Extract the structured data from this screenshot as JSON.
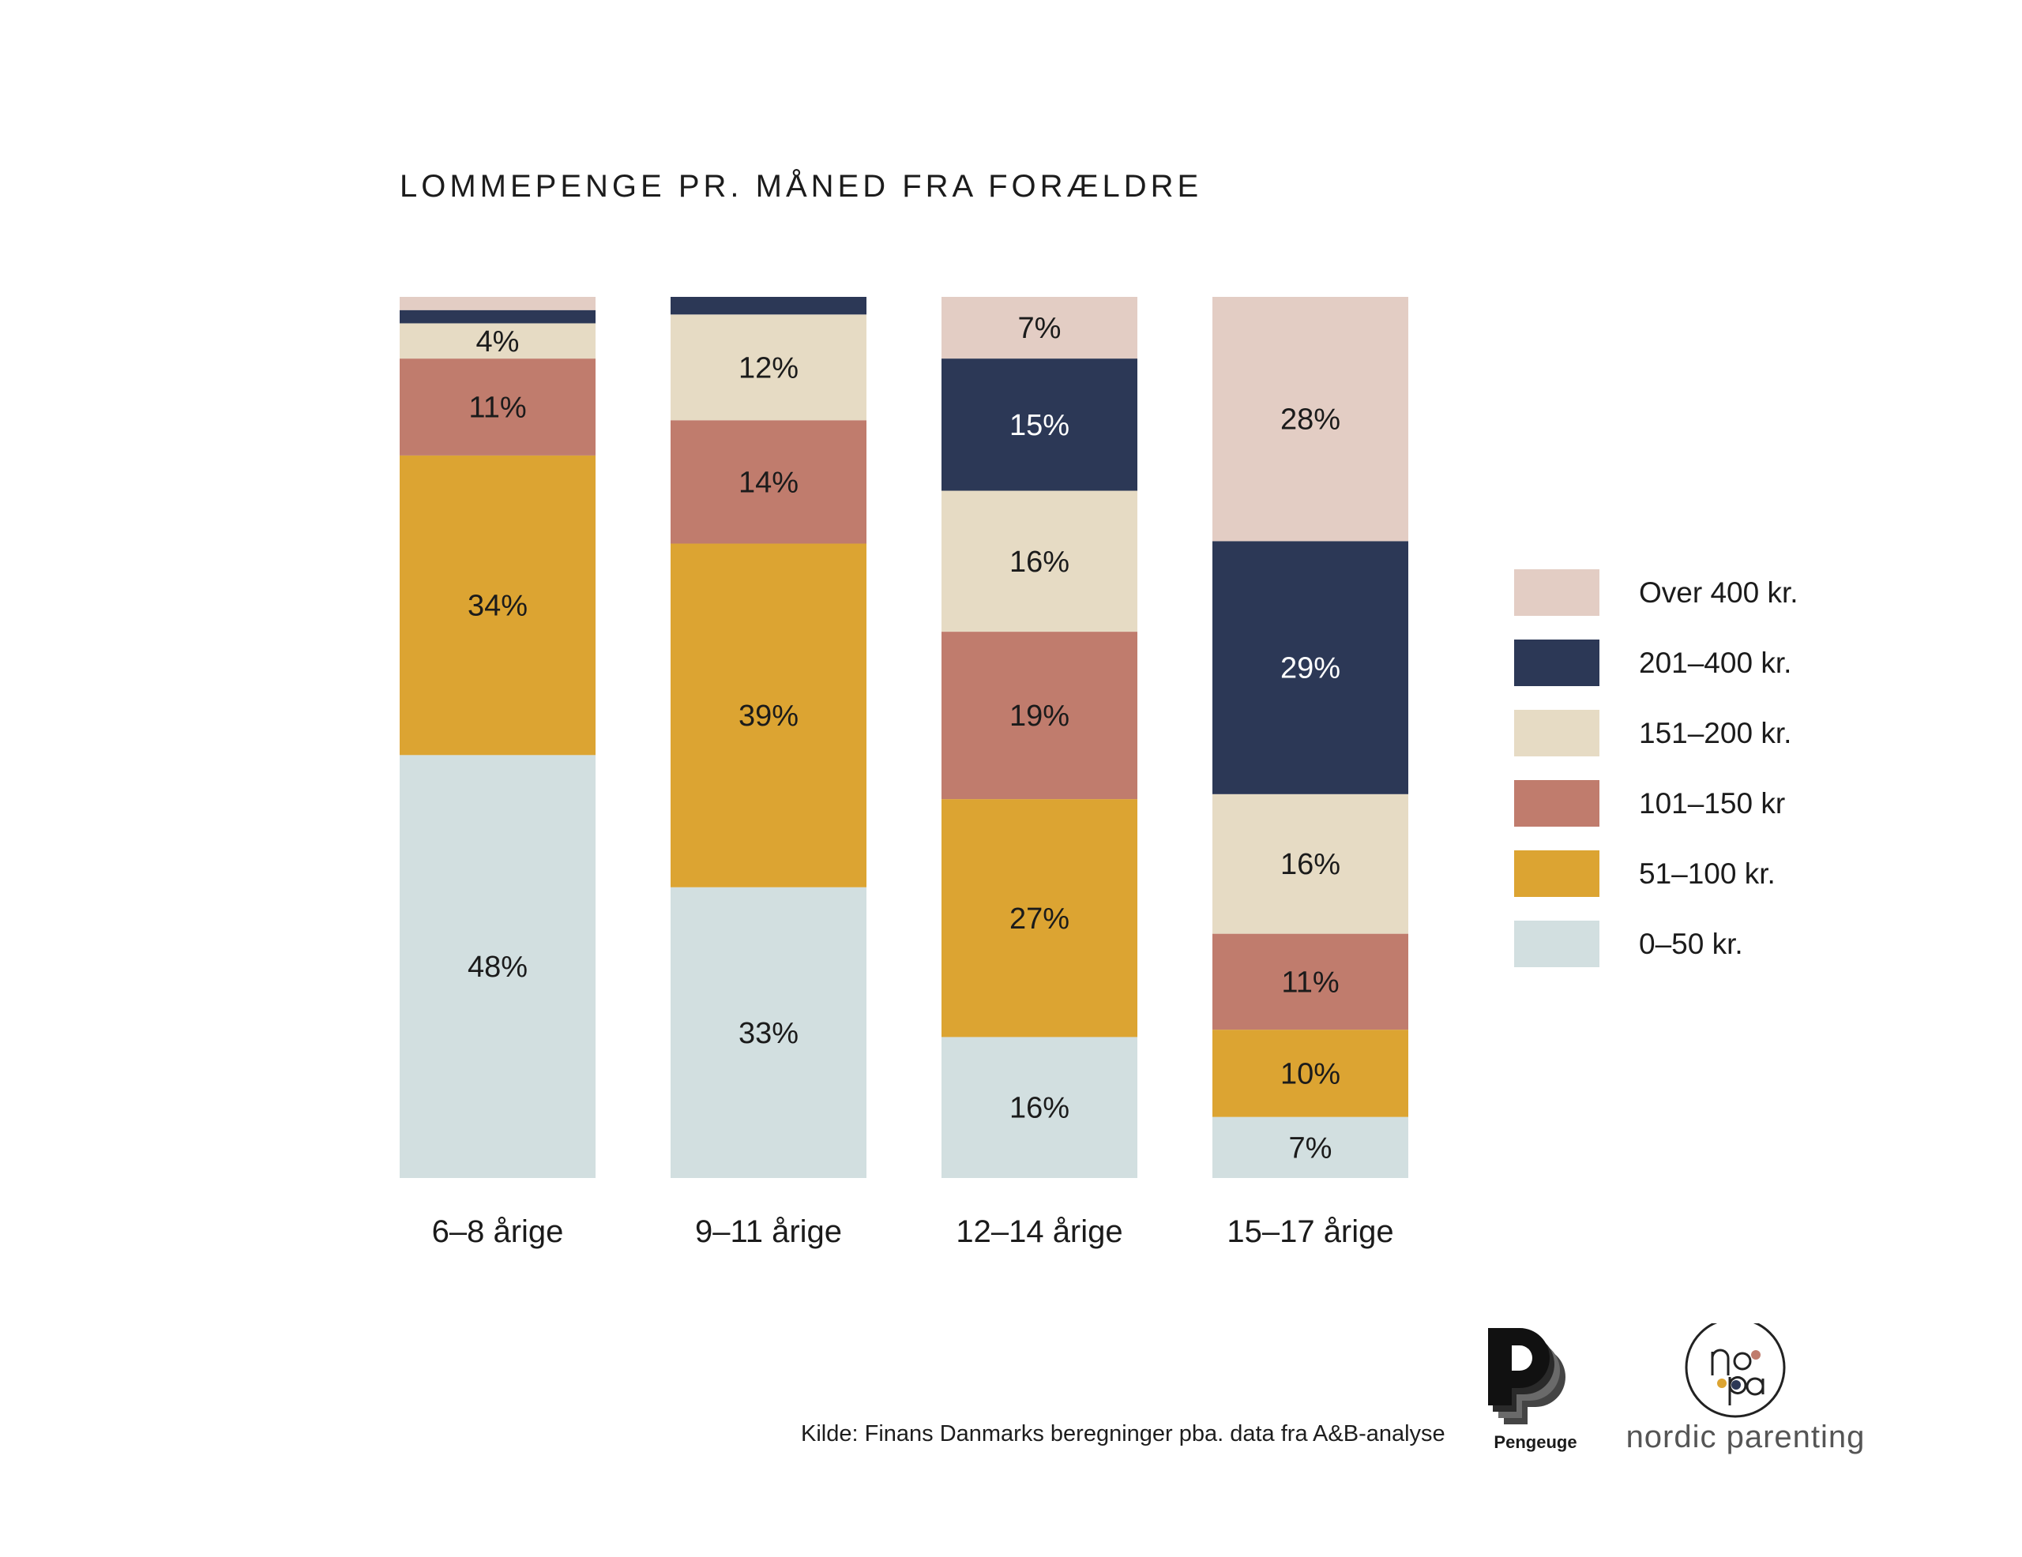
{
  "chart_data": {
    "type": "bar",
    "stacked": true,
    "title": "LOMMEPENGE PR. MÅNED FRA FORÆLDRE",
    "categories": [
      "6–8 årige",
      "9–11 årige",
      "12–14 årige",
      "15–17 årige"
    ],
    "ylim": [
      0,
      100
    ],
    "grid": false,
    "legend_position": "right",
    "series": [
      {
        "name": "0–50 kr.",
        "color": "#d2dfe0",
        "text_color": "#1b1b1b",
        "values": [
          48,
          33,
          16,
          7
        ],
        "labels": [
          "48%",
          "33%",
          "16%",
          "7%"
        ]
      },
      {
        "name": "51–100 kr.",
        "color": "#dca432",
        "text_color": "#1b1b1b",
        "values": [
          34,
          39,
          27,
          10
        ],
        "labels": [
          "34%",
          "39%",
          "27%",
          "10%"
        ]
      },
      {
        "name": "101–150 kr",
        "color": "#c07c6d",
        "text_color": "#1b1b1b",
        "values": [
          11,
          14,
          19,
          11
        ],
        "labels": [
          "11%",
          "14%",
          "19%",
          "11%"
        ]
      },
      {
        "name": "151–200 kr.",
        "color": "#e6dbc4",
        "text_color": "#1b1b1b",
        "values": [
          4,
          12,
          16,
          16
        ],
        "labels": [
          "4%",
          "12%",
          "16%",
          "16%"
        ]
      },
      {
        "name": "201–400 kr.",
        "color": "#2c3856",
        "text_color": "#ffffff",
        "values": [
          1.5,
          2,
          15,
          29
        ],
        "labels": [
          "",
          "",
          "15%",
          "29%"
        ]
      },
      {
        "name": "Over 400 kr.",
        "color": "#e3cdc4",
        "text_color": "#1b1b1b",
        "values": [
          1.5,
          0,
          7,
          28
        ],
        "labels": [
          "",
          "",
          "7%",
          "28%"
        ]
      }
    ]
  },
  "legend_order": [
    "Over 400 kr.",
    "201–400 kr.",
    "151–200 kr.",
    "101–150 kr",
    "51–100 kr.",
    "0–50 kr."
  ],
  "source": "Kilde: Finans Danmarks beregninger pba. data fra A&B-analyse",
  "logos": {
    "pengeuge": {
      "icon": "pengeuge-logo-icon",
      "text": "Pengeuge"
    },
    "nordic_parenting": {
      "icon": "nopa-logo-icon",
      "text": "nordic parenting"
    }
  }
}
